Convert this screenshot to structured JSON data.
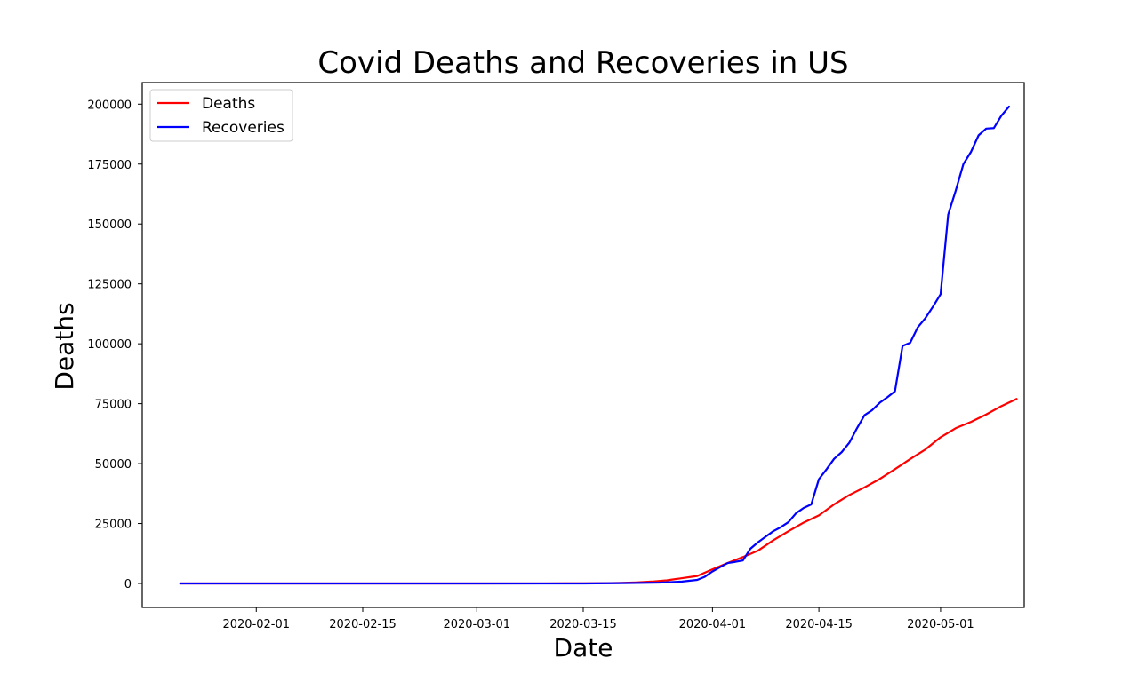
{
  "chart_data": {
    "type": "line",
    "title": "Covid Deaths and Recoveries in US",
    "xlabel": "Date",
    "ylabel": "Deaths",
    "xlim": [
      "2020-01-17",
      "2020-05-12"
    ],
    "ylim": [
      -10000,
      209000
    ],
    "x_ticks": [
      "2020-02-01",
      "2020-02-15",
      "2020-03-01",
      "2020-03-15",
      "2020-04-01",
      "2020-04-15",
      "2020-05-01"
    ],
    "y_ticks": [
      0,
      25000,
      50000,
      75000,
      100000,
      125000,
      150000,
      175000,
      200000
    ],
    "grid": false,
    "legend_position": "top-left",
    "series": [
      {
        "name": "Deaths",
        "color": "#ff0000",
        "points": [
          [
            "2020-01-22",
            0
          ],
          [
            "2020-02-15",
            0
          ],
          [
            "2020-03-01",
            1
          ],
          [
            "2020-03-10",
            28
          ],
          [
            "2020-03-15",
            60
          ],
          [
            "2020-03-18",
            118
          ],
          [
            "2020-03-20",
            250
          ],
          [
            "2020-03-22",
            450
          ],
          [
            "2020-03-24",
            780
          ],
          [
            "2020-03-26",
            1300
          ],
          [
            "2020-03-28",
            2200
          ],
          [
            "2020-03-30",
            3100
          ],
          [
            "2020-04-01",
            5900
          ],
          [
            "2020-04-03",
            8500
          ],
          [
            "2020-04-05",
            11000
          ],
          [
            "2020-04-07",
            13700
          ],
          [
            "2020-04-09",
            18000
          ],
          [
            "2020-04-11",
            21800
          ],
          [
            "2020-04-13",
            25400
          ],
          [
            "2020-04-15",
            28400
          ],
          [
            "2020-04-17",
            33000
          ],
          [
            "2020-04-19",
            36900
          ],
          [
            "2020-04-21",
            40100
          ],
          [
            "2020-04-23",
            43600
          ],
          [
            "2020-04-25",
            47700
          ],
          [
            "2020-04-27",
            51900
          ],
          [
            "2020-04-29",
            55900
          ],
          [
            "2020-05-01",
            61000
          ],
          [
            "2020-05-03",
            64800
          ],
          [
            "2020-05-05",
            67400
          ],
          [
            "2020-05-07",
            70500
          ],
          [
            "2020-05-09",
            74000
          ],
          [
            "2020-05-11",
            77000
          ]
        ]
      },
      {
        "name": "Recoveries",
        "color": "#0000ff",
        "points": [
          [
            "2020-01-22",
            0
          ],
          [
            "2020-03-15",
            10
          ],
          [
            "2020-03-20",
            150
          ],
          [
            "2020-03-25",
            350
          ],
          [
            "2020-03-28",
            800
          ],
          [
            "2020-03-30",
            1500
          ],
          [
            "2020-03-31",
            2800
          ],
          [
            "2020-04-01",
            5000
          ],
          [
            "2020-04-02",
            6800
          ],
          [
            "2020-04-03",
            8500
          ],
          [
            "2020-04-04",
            9000
          ],
          [
            "2020-04-05",
            9600
          ],
          [
            "2020-04-06",
            14500
          ],
          [
            "2020-04-07",
            17200
          ],
          [
            "2020-04-08",
            19500
          ],
          [
            "2020-04-09",
            21800
          ],
          [
            "2020-04-10",
            23500
          ],
          [
            "2020-04-11",
            25600
          ],
          [
            "2020-04-12",
            29300
          ],
          [
            "2020-04-13",
            31500
          ],
          [
            "2020-04-14",
            33000
          ],
          [
            "2020-04-15",
            43500
          ],
          [
            "2020-04-16",
            47600
          ],
          [
            "2020-04-17",
            52000
          ],
          [
            "2020-04-18",
            54800
          ],
          [
            "2020-04-19",
            58700
          ],
          [
            "2020-04-20",
            64700
          ],
          [
            "2020-04-21",
            70200
          ],
          [
            "2020-04-22",
            72300
          ],
          [
            "2020-04-23",
            75400
          ],
          [
            "2020-04-24",
            77700
          ],
          [
            "2020-04-25",
            80200
          ],
          [
            "2020-04-26",
            99100
          ],
          [
            "2020-04-27",
            100400
          ],
          [
            "2020-04-28",
            106900
          ],
          [
            "2020-04-29",
            110700
          ],
          [
            "2020-04-30",
            115500
          ],
          [
            "2020-05-01",
            120700
          ],
          [
            "2020-05-02",
            153900
          ],
          [
            "2020-05-03",
            164000
          ],
          [
            "2020-05-04",
            175000
          ],
          [
            "2020-05-05",
            180100
          ],
          [
            "2020-05-06",
            187000
          ],
          [
            "2020-05-07",
            189800
          ],
          [
            "2020-05-08",
            190000
          ],
          [
            "2020-05-09",
            195200
          ],
          [
            "2020-05-10",
            199000
          ]
        ]
      }
    ]
  }
}
